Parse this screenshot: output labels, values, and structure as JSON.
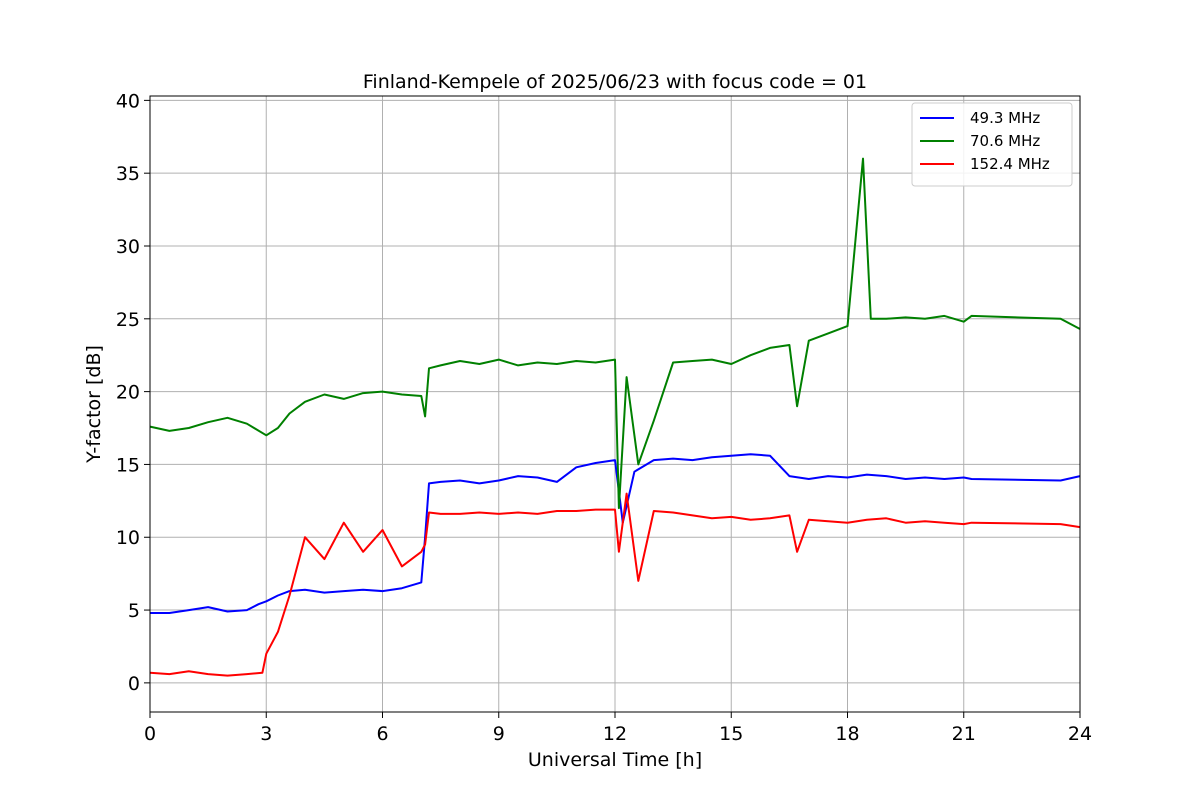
{
  "chart_data": {
    "type": "line",
    "title": "Finland-Kempele of 2025/06/23 with focus code = 01",
    "xlabel": "Universal Time [h]",
    "ylabel": "Y-factor [dB]",
    "xlim": [
      0,
      24
    ],
    "ylim": [
      -2,
      40.3
    ],
    "xticks": [
      0,
      3,
      6,
      9,
      12,
      15,
      18,
      21,
      24
    ],
    "yticks": [
      0,
      5,
      10,
      15,
      20,
      25,
      30,
      35,
      40
    ],
    "grid": true,
    "legend_position": "top-right",
    "series": [
      {
        "name": " 49.3 MHz",
        "color": "#0000ff",
        "x": [
          0,
          0.5,
          1,
          1.5,
          2,
          2.5,
          2.8,
          3.0,
          3.3,
          3.6,
          4.0,
          4.5,
          5.0,
          5.5,
          6.0,
          6.5,
          7.0,
          7.1,
          7.2,
          7.5,
          8.0,
          8.5,
          9.0,
          9.5,
          10.0,
          10.5,
          11.0,
          11.5,
          12.0,
          12.2,
          12.5,
          13.0,
          13.5,
          14.0,
          14.5,
          15.0,
          15.5,
          16.0,
          16.5,
          17.0,
          17.5,
          18.0,
          18.5,
          19.0,
          19.5,
          20.0,
          20.5,
          21.0,
          21.2,
          23.5,
          24.0
        ],
        "y": [
          4.8,
          4.8,
          5.0,
          5.2,
          4.9,
          5.0,
          5.4,
          5.6,
          6.0,
          6.3,
          6.4,
          6.2,
          6.3,
          6.4,
          6.3,
          6.5,
          6.9,
          10.0,
          13.7,
          13.8,
          13.9,
          13.7,
          13.9,
          14.2,
          14.1,
          13.8,
          14.8,
          15.1,
          15.3,
          11.0,
          14.5,
          15.3,
          15.4,
          15.3,
          15.5,
          15.6,
          15.7,
          15.6,
          14.2,
          14.0,
          14.2,
          14.1,
          14.3,
          14.2,
          14.0,
          14.1,
          14.0,
          14.1,
          14.0,
          13.9,
          14.2
        ]
      },
      {
        "name": " 70.6 MHz",
        "color": "#008000",
        "x": [
          0,
          0.5,
          1,
          1.5,
          2,
          2.5,
          3.0,
          3.3,
          3.6,
          4.0,
          4.5,
          5.0,
          5.5,
          6.0,
          6.5,
          7.0,
          7.1,
          7.2,
          7.5,
          8.0,
          8.5,
          9.0,
          9.5,
          10.0,
          10.5,
          11.0,
          11.5,
          12.0,
          12.1,
          12.3,
          12.6,
          13.0,
          13.5,
          14.0,
          14.5,
          15.0,
          15.5,
          16.0,
          16.5,
          16.7,
          17.0,
          17.5,
          18.0,
          18.4,
          18.6,
          19.0,
          19.5,
          20.0,
          20.5,
          21.0,
          21.2,
          23.5,
          24.0
        ],
        "y": [
          17.6,
          17.3,
          17.5,
          17.9,
          18.2,
          17.8,
          17.0,
          17.5,
          18.5,
          19.3,
          19.8,
          19.5,
          19.9,
          20.0,
          19.8,
          19.7,
          18.3,
          21.6,
          21.8,
          22.1,
          21.9,
          22.2,
          21.8,
          22.0,
          21.9,
          22.1,
          22.0,
          22.2,
          12.0,
          21.0,
          15.0,
          18.0,
          22.0,
          22.1,
          22.2,
          21.9,
          22.5,
          23.0,
          23.2,
          19.0,
          23.5,
          24.0,
          24.5,
          36.0,
          25.0,
          25.0,
          25.1,
          25.0,
          25.2,
          24.8,
          25.2,
          25.0,
          24.3
        ]
      },
      {
        "name": "152.4 MHz",
        "color": "#ff0000",
        "x": [
          0,
          0.5,
          1,
          1.5,
          2,
          2.5,
          2.9,
          3.0,
          3.3,
          3.6,
          4.0,
          4.5,
          5.0,
          5.5,
          6.0,
          6.5,
          7.0,
          7.1,
          7.2,
          7.5,
          8.0,
          8.5,
          9.0,
          9.5,
          10.0,
          10.5,
          11.0,
          11.5,
          12.0,
          12.1,
          12.3,
          12.6,
          13.0,
          13.5,
          14.0,
          14.5,
          15.0,
          15.5,
          16.0,
          16.5,
          16.7,
          17.0,
          17.5,
          18.0,
          18.5,
          19.0,
          19.5,
          20.0,
          20.5,
          21.0,
          21.2,
          23.5,
          24.0
        ],
        "y": [
          0.7,
          0.6,
          0.8,
          0.6,
          0.5,
          0.6,
          0.7,
          2.0,
          3.5,
          6.0,
          10.0,
          8.5,
          11.0,
          9.0,
          10.5,
          8.0,
          9.0,
          9.5,
          11.7,
          11.6,
          11.6,
          11.7,
          11.6,
          11.7,
          11.6,
          11.8,
          11.8,
          11.9,
          11.9,
          9.0,
          13.0,
          7.0,
          11.8,
          11.7,
          11.5,
          11.3,
          11.4,
          11.2,
          11.3,
          11.5,
          9.0,
          11.2,
          11.1,
          11.0,
          11.2,
          11.3,
          11.0,
          11.1,
          11.0,
          10.9,
          11.0,
          10.9,
          10.7
        ]
      }
    ]
  }
}
